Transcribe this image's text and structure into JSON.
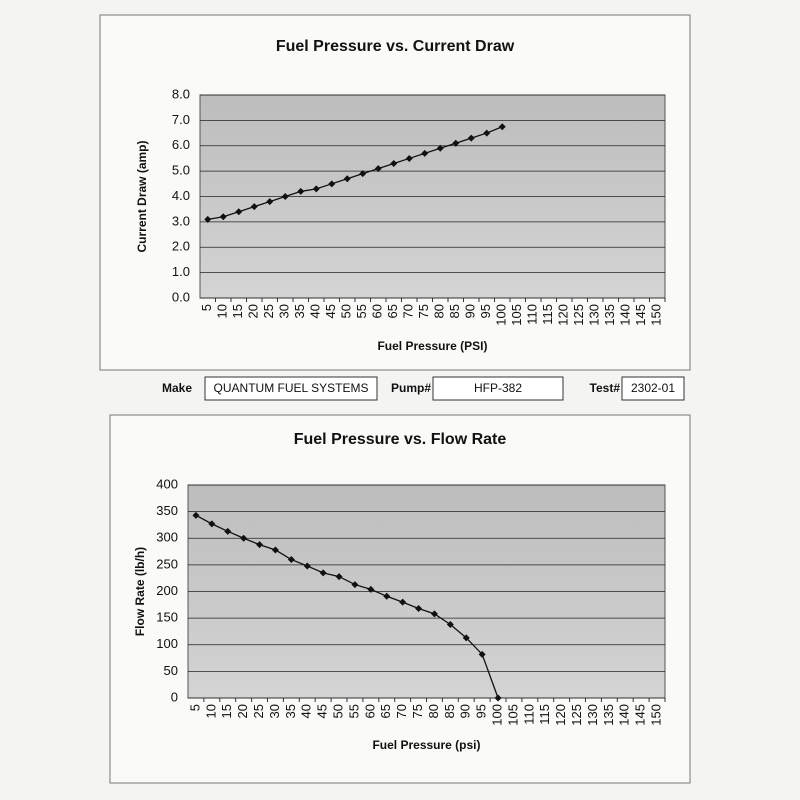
{
  "chart_data": [
    {
      "type": "line",
      "title": "Fuel Pressure vs. Current Draw",
      "x_label": "Fuel Pressure (PSI)",
      "y_label": "Current Draw (amp)",
      "categories": [
        "5",
        "10",
        "15",
        "20",
        "25",
        "30",
        "35",
        "40",
        "45",
        "50",
        "55",
        "60",
        "65",
        "70",
        "75",
        "80",
        "85",
        "90",
        "95",
        "100",
        "105",
        "110",
        "115",
        "120",
        "125",
        "130",
        "135",
        "140",
        "145",
        "150"
      ],
      "values": [
        3.1,
        3.2,
        3.4,
        3.6,
        3.8,
        4.0,
        4.2,
        4.3,
        4.5,
        4.7,
        4.9,
        5.1,
        5.3,
        5.5,
        5.7,
        5.9,
        6.1,
        6.3,
        6.5,
        6.75,
        null,
        null,
        null,
        null,
        null,
        null,
        null,
        null,
        null,
        null
      ],
      "color": "#111111",
      "ylim": [
        0,
        8
      ],
      "yticks": [
        {
          "value": 0,
          "label": "0.0"
        },
        {
          "value": 1,
          "label": "1.0"
        },
        {
          "value": 2,
          "label": "2.0"
        },
        {
          "value": 3,
          "label": "3.0"
        },
        {
          "value": 4,
          "label": "4.0"
        },
        {
          "value": 5,
          "label": "5.0"
        },
        {
          "value": 6,
          "label": "6.0"
        },
        {
          "value": 7,
          "label": "7.0"
        },
        {
          "value": 8,
          "label": "8.0"
        }
      ],
      "grid": true
    },
    {
      "type": "line",
      "title": "Fuel Pressure vs. Flow Rate",
      "x_label": "Fuel Pressure (psi)",
      "y_label": "Flow Rate (lb/h)",
      "categories": [
        "5",
        "10",
        "15",
        "20",
        "25",
        "30",
        "35",
        "40",
        "45",
        "50",
        "55",
        "60",
        "65",
        "70",
        "75",
        "80",
        "85",
        "90",
        "95",
        "100",
        "105",
        "110",
        "115",
        "120",
        "125",
        "130",
        "135",
        "140",
        "145",
        "150"
      ],
      "values": [
        343,
        327,
        313,
        300,
        288,
        278,
        260,
        248,
        235,
        228,
        213,
        204,
        191,
        180,
        168,
        158,
        138,
        113,
        82,
        0,
        null,
        null,
        null,
        null,
        null,
        null,
        null,
        null,
        null,
        null
      ],
      "color": "#111111",
      "ylim": [
        0,
        400
      ],
      "yticks": [
        0,
        50,
        100,
        150,
        200,
        250,
        300,
        350,
        400
      ],
      "grid": true
    }
  ],
  "info": {
    "make_label": "Make",
    "make": "QUANTUM FUEL SYSTEMS",
    "pump_label": "Pump#",
    "pump": "HFP-382",
    "test_label": "Test#",
    "test": "2302-01"
  }
}
